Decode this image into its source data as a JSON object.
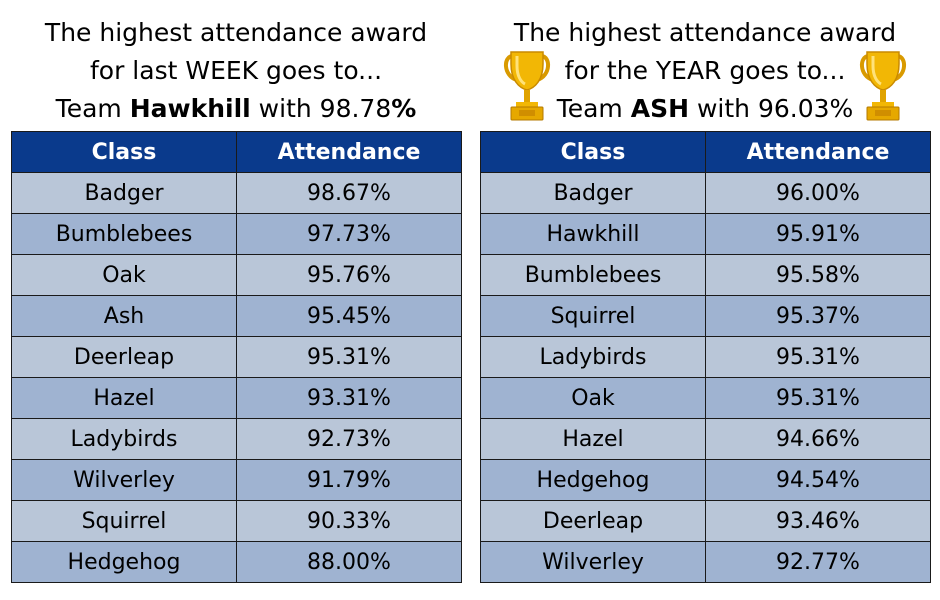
{
  "week": {
    "line1": "The highest attendance award",
    "line2": "for last WEEK goes to...",
    "line3_prefix": "Team ",
    "team": "Hawkhill",
    "line3_mid": " with ",
    "value": "98.78",
    "percent": "%",
    "headers": {
      "class": "Class",
      "attendance": "Attendance"
    },
    "rows": [
      {
        "class": "Badger",
        "attendance": "98.67%"
      },
      {
        "class": "Bumblebees",
        "attendance": "97.73%"
      },
      {
        "class": "Oak",
        "attendance": "95.76%"
      },
      {
        "class": "Ash",
        "attendance": "95.45%"
      },
      {
        "class": "Deerleap",
        "attendance": "95.31%"
      },
      {
        "class": "Hazel",
        "attendance": "93.31%"
      },
      {
        "class": "Ladybirds",
        "attendance": "92.73%"
      },
      {
        "class": "Wilverley",
        "attendance": "91.79%"
      },
      {
        "class": "Squirrel",
        "attendance": "90.33%"
      },
      {
        "class": "Hedgehog",
        "attendance": "88.00%"
      }
    ]
  },
  "year": {
    "line1": "The highest attendance award",
    "line2": "for the YEAR goes to...",
    "line3_prefix": "Team ",
    "team": "ASH",
    "line3_suffix": " with 96.03%",
    "headers": {
      "class": "Class",
      "attendance": "Attendance"
    },
    "rows": [
      {
        "class": "Badger",
        "attendance": "96.00%"
      },
      {
        "class": "Hawkhill",
        "attendance": "95.91%"
      },
      {
        "class": "Bumblebees",
        "attendance": "95.58%"
      },
      {
        "class": "Squirrel",
        "attendance": "95.37%"
      },
      {
        "class": "Ladybirds",
        "attendance": "95.31%"
      },
      {
        "class": "Oak",
        "attendance": "95.31%"
      },
      {
        "class": "Hazel",
        "attendance": "94.66%"
      },
      {
        "class": "Hedgehog",
        "attendance": "94.54%"
      },
      {
        "class": "Deerleap",
        "attendance": "93.46%"
      },
      {
        "class": "Wilverley",
        "attendance": "92.77%"
      }
    ]
  },
  "colors": {
    "header_bg": "#0a3a8c",
    "row_light": "#b9c6d8",
    "row_dark": "#9fb3d1",
    "trophy_gold": "#f2b705"
  },
  "icons": {
    "trophy": "trophy-icon"
  }
}
